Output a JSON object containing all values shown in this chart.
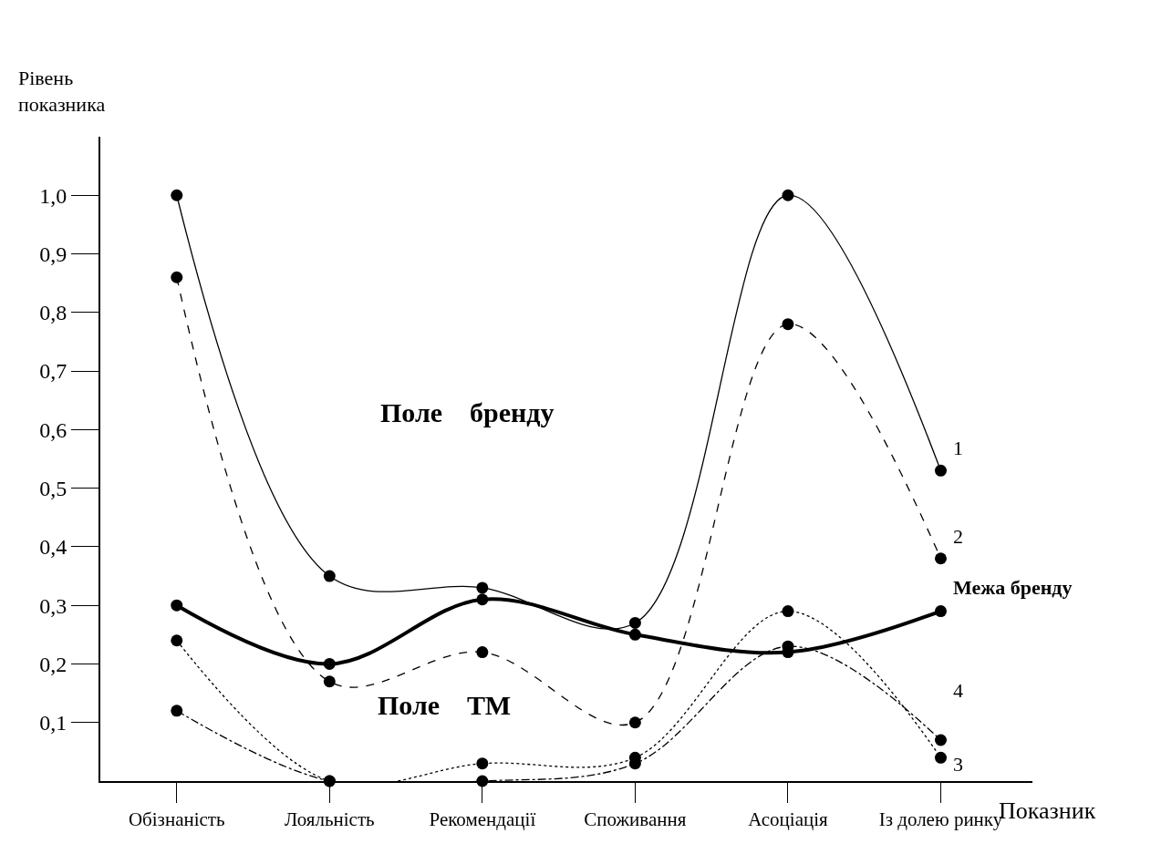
{
  "chart_data": {
    "type": "line",
    "ylabel": "Рівень показника",
    "xlabel": "Показник",
    "categories": [
      "Обізнаність",
      "Лояльність",
      "Рекомендації",
      "Споживання",
      "Асоціація",
      "Із долею ринку"
    ],
    "series": [
      {
        "name": "1",
        "color": "#000000",
        "line_style": "solid",
        "values": [
          1.0,
          0.35,
          0.33,
          0.27,
          1.0,
          0.53
        ]
      },
      {
        "name": "2",
        "color": "#000000",
        "line_style": "dashed",
        "values": [
          0.86,
          0.17,
          0.22,
          0.1,
          0.78,
          0.38
        ]
      },
      {
        "name": "Межа бренду",
        "color": "#000000",
        "line_style": "solid",
        "values": [
          0.3,
          0.2,
          0.31,
          0.25,
          0.22,
          0.29
        ]
      },
      {
        "name": "3",
        "color": "#000000",
        "line_style": "dotted",
        "values": [
          0.24,
          0.0,
          0.03,
          0.04,
          0.29,
          0.04
        ]
      },
      {
        "name": "4",
        "color": "#000000",
        "line_style": "dashdot",
        "values": [
          0.12,
          0.0,
          0.0,
          0.03,
          0.23,
          0.07
        ]
      }
    ],
    "annotations": [
      "Поле    бренду",
      "Поле    ТМ"
    ],
    "ylim": [
      0,
      1.1
    ],
    "yticks": [
      {
        "value": 0.1,
        "label": "0,1"
      },
      {
        "value": 0.2,
        "label": "0,2"
      },
      {
        "value": 0.3,
        "label": "0,3"
      },
      {
        "value": 0.4,
        "label": "0,4"
      },
      {
        "value": 0.5,
        "label": "0,5"
      },
      {
        "value": 0.6,
        "label": "0,6"
      },
      {
        "value": 0.7,
        "label": "0,7"
      },
      {
        "value": 0.8,
        "label": "0,8"
      },
      {
        "value": 0.9,
        "label": "0,9"
      },
      {
        "value": 1.0,
        "label": "1,0"
      }
    ],
    "grid": false,
    "legend": false,
    "marker": "circle"
  }
}
